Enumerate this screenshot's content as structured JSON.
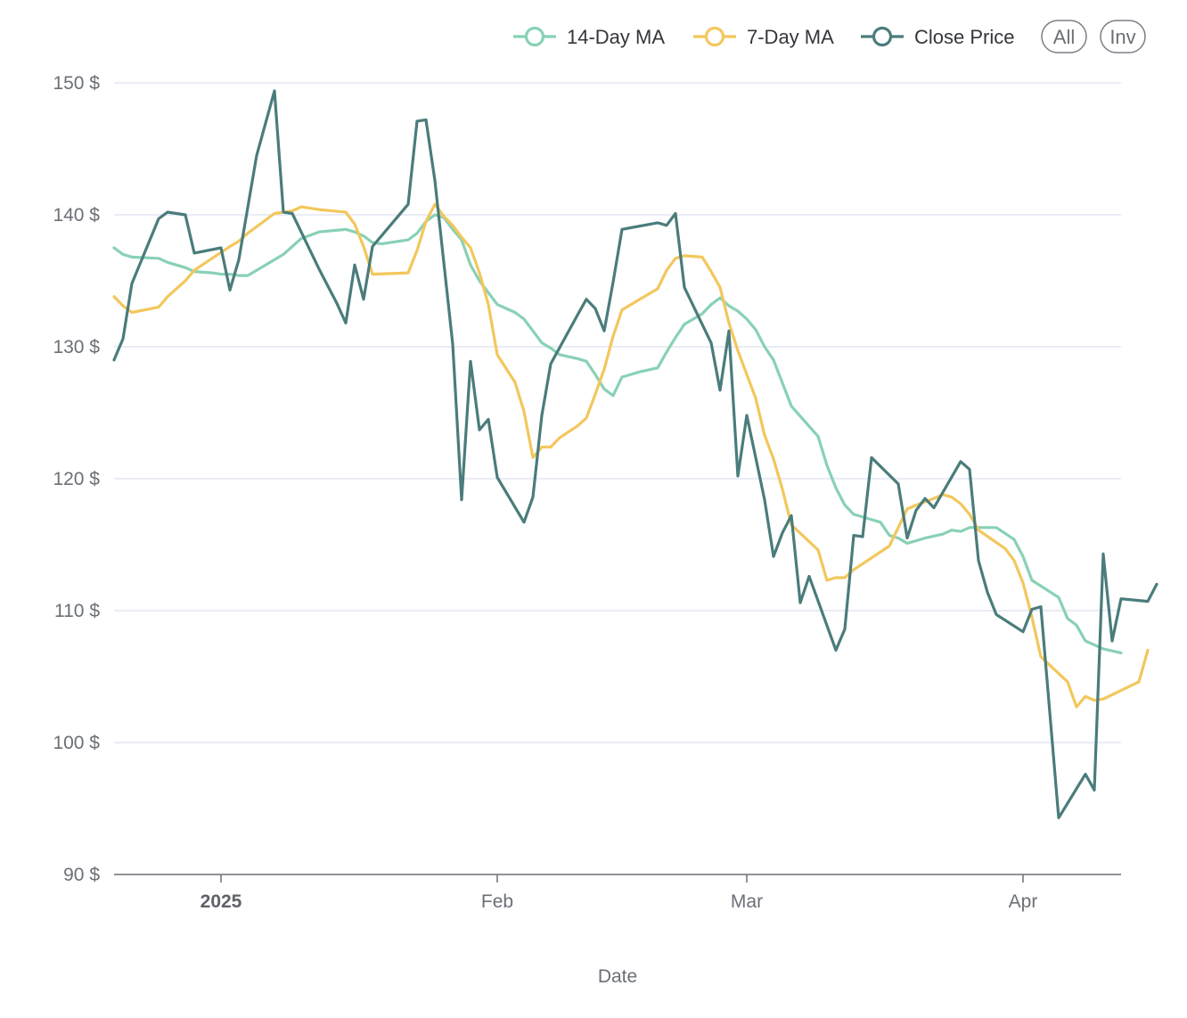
{
  "chart_data": {
    "type": "line",
    "xlabel": "Date",
    "y_tick_suffix": " $",
    "ylim": [
      90,
      150
    ],
    "y_ticks": [
      90,
      100,
      110,
      120,
      130,
      140,
      150
    ],
    "xlim": [
      "2024-12-20",
      "2025-04-12"
    ],
    "x_ticks": [
      {
        "date": "2025-01-01",
        "label": "2025",
        "bold": true
      },
      {
        "date": "2025-02-01",
        "label": "Feb",
        "bold": false
      },
      {
        "date": "2025-03-01",
        "label": "Mar",
        "bold": false
      },
      {
        "date": "2025-04-01",
        "label": "Apr",
        "bold": false
      }
    ],
    "grid": true,
    "legend_position": "top-right",
    "legend_buttons": [
      "All",
      "Inv"
    ],
    "series": [
      {
        "name": "14-Day MA",
        "color": "#88d1b5",
        "points": [
          [
            "2024-12-20",
            137.5
          ],
          [
            "2024-12-21",
            137.0
          ],
          [
            "2024-12-22",
            136.8
          ],
          [
            "2024-12-25",
            136.7
          ],
          [
            "2024-12-26",
            136.4
          ],
          [
            "2024-12-28",
            136.0
          ],
          [
            "2024-12-29",
            135.7
          ],
          [
            "2024-12-31",
            135.6
          ],
          [
            "2025-01-01",
            135.5
          ],
          [
            "2025-01-02",
            135.5
          ],
          [
            "2025-01-03",
            135.4
          ],
          [
            "2025-01-04",
            135.4
          ],
          [
            "2025-01-05",
            135.8
          ],
          [
            "2025-01-08",
            137.0
          ],
          [
            "2025-01-10",
            138.2
          ],
          [
            "2025-01-12",
            138.7
          ],
          [
            "2025-01-15",
            138.9
          ],
          [
            "2025-01-16",
            138.7
          ],
          [
            "2025-01-17",
            138.4
          ],
          [
            "2025-01-18",
            137.9
          ],
          [
            "2025-01-19",
            137.8
          ],
          [
            "2025-01-20",
            137.9
          ],
          [
            "2025-01-22",
            138.1
          ],
          [
            "2025-01-23",
            138.6
          ],
          [
            "2025-01-24",
            139.5
          ],
          [
            "2025-01-25",
            140.0
          ],
          [
            "2025-01-26",
            139.8
          ],
          [
            "2025-01-27",
            138.9
          ],
          [
            "2025-01-28",
            138.1
          ],
          [
            "2025-01-29",
            136.2
          ],
          [
            "2025-01-30",
            135.0
          ],
          [
            "2025-02-01",
            133.2
          ],
          [
            "2025-02-03",
            132.6
          ],
          [
            "2025-02-04",
            132.1
          ],
          [
            "2025-02-05",
            131.2
          ],
          [
            "2025-02-06",
            130.3
          ],
          [
            "2025-02-07",
            129.9
          ],
          [
            "2025-02-08",
            129.4
          ],
          [
            "2025-02-10",
            129.1
          ],
          [
            "2025-02-11",
            128.9
          ],
          [
            "2025-02-12",
            127.9
          ],
          [
            "2025-02-13",
            126.8
          ],
          [
            "2025-02-14",
            126.3
          ],
          [
            "2025-02-15",
            127.7
          ],
          [
            "2025-02-17",
            128.1
          ],
          [
            "2025-02-19",
            128.4
          ],
          [
            "2025-02-20",
            129.6
          ],
          [
            "2025-02-21",
            130.7
          ],
          [
            "2025-02-22",
            131.7
          ],
          [
            "2025-02-24",
            132.5
          ],
          [
            "2025-02-25",
            133.2
          ],
          [
            "2025-02-26",
            133.7
          ],
          [
            "2025-02-27",
            133.1
          ],
          [
            "2025-02-28",
            132.7
          ],
          [
            "2025-03-01",
            132.1
          ],
          [
            "2025-03-02",
            131.3
          ],
          [
            "2025-03-03",
            130.0
          ],
          [
            "2025-03-04",
            129.0
          ],
          [
            "2025-03-06",
            125.5
          ],
          [
            "2025-03-09",
            123.2
          ],
          [
            "2025-03-10",
            121.0
          ],
          [
            "2025-03-11",
            119.3
          ],
          [
            "2025-03-12",
            118.0
          ],
          [
            "2025-03-13",
            117.3
          ],
          [
            "2025-03-14",
            117.1
          ],
          [
            "2025-03-15",
            116.9
          ],
          [
            "2025-03-16",
            116.7
          ],
          [
            "2025-03-17",
            115.7
          ],
          [
            "2025-03-18",
            115.5
          ],
          [
            "2025-03-19",
            115.1
          ],
          [
            "2025-03-20",
            115.3
          ],
          [
            "2025-03-21",
            115.5
          ],
          [
            "2025-03-23",
            115.8
          ],
          [
            "2025-03-24",
            116.1
          ],
          [
            "2025-03-25",
            116.0
          ],
          [
            "2025-03-26",
            116.3
          ],
          [
            "2025-03-29",
            116.3
          ],
          [
            "2025-03-31",
            115.4
          ],
          [
            "2025-04-01",
            114.1
          ],
          [
            "2025-04-02",
            112.3
          ],
          [
            "2025-04-05",
            111.0
          ],
          [
            "2025-04-06",
            109.4
          ],
          [
            "2025-04-07",
            108.9
          ],
          [
            "2025-04-08",
            107.7
          ],
          [
            "2025-04-10",
            107.1
          ],
          [
            "2025-04-12",
            106.8
          ]
        ]
      },
      {
        "name": "7-Day MA",
        "color": "#f2c75c",
        "points": [
          [
            "2024-12-20",
            133.8
          ],
          [
            "2024-12-21",
            133.1
          ],
          [
            "2024-12-22",
            132.6
          ],
          [
            "2024-12-25",
            133.0
          ],
          [
            "2024-12-26",
            133.8
          ],
          [
            "2024-12-28",
            135.0
          ],
          [
            "2024-12-29",
            135.8
          ],
          [
            "2025-01-02",
            137.6
          ],
          [
            "2025-01-03",
            138.0
          ],
          [
            "2025-01-04",
            138.6
          ],
          [
            "2025-01-07",
            140.1
          ],
          [
            "2025-01-08",
            140.2
          ],
          [
            "2025-01-09",
            140.3
          ],
          [
            "2025-01-10",
            140.6
          ],
          [
            "2025-01-12",
            140.4
          ],
          [
            "2025-01-15",
            140.2
          ],
          [
            "2025-01-16",
            139.3
          ],
          [
            "2025-01-17",
            137.6
          ],
          [
            "2025-01-18",
            135.5
          ],
          [
            "2025-01-22",
            135.6
          ],
          [
            "2025-01-23",
            137.3
          ],
          [
            "2025-01-24",
            139.5
          ],
          [
            "2025-01-25",
            140.8
          ],
          [
            "2025-01-26",
            139.9
          ],
          [
            "2025-01-27",
            139.2
          ],
          [
            "2025-01-28",
            138.3
          ],
          [
            "2025-01-29",
            137.5
          ],
          [
            "2025-01-30",
            135.6
          ],
          [
            "2025-01-31",
            133.2
          ],
          [
            "2025-02-01",
            129.4
          ],
          [
            "2025-02-03",
            127.3
          ],
          [
            "2025-02-04",
            125.1
          ],
          [
            "2025-02-05",
            121.6
          ],
          [
            "2025-02-06",
            122.4
          ],
          [
            "2025-02-07",
            122.4
          ],
          [
            "2025-02-08",
            123.1
          ],
          [
            "2025-02-10",
            124.0
          ],
          [
            "2025-02-11",
            124.6
          ],
          [
            "2025-02-12",
            126.4
          ],
          [
            "2025-02-13",
            128.3
          ],
          [
            "2025-02-14",
            130.8
          ],
          [
            "2025-02-15",
            132.8
          ],
          [
            "2025-02-17",
            133.6
          ],
          [
            "2025-02-19",
            134.4
          ],
          [
            "2025-02-20",
            135.8
          ],
          [
            "2025-02-21",
            136.7
          ],
          [
            "2025-02-22",
            136.9
          ],
          [
            "2025-02-24",
            136.8
          ],
          [
            "2025-02-25",
            135.7
          ],
          [
            "2025-02-26",
            134.5
          ],
          [
            "2025-02-27",
            131.8
          ],
          [
            "2025-02-28",
            129.7
          ],
          [
            "2025-03-02",
            126.1
          ],
          [
            "2025-03-03",
            123.3
          ],
          [
            "2025-03-04",
            121.5
          ],
          [
            "2025-03-05",
            119.2
          ],
          [
            "2025-03-06",
            116.5
          ],
          [
            "2025-03-09",
            114.6
          ],
          [
            "2025-03-10",
            112.3
          ],
          [
            "2025-03-11",
            112.5
          ],
          [
            "2025-03-12",
            112.5
          ],
          [
            "2025-03-13",
            113.1
          ],
          [
            "2025-03-17",
            114.9
          ],
          [
            "2025-03-18",
            116.3
          ],
          [
            "2025-03-19",
            117.7
          ],
          [
            "2025-03-20",
            118.0
          ],
          [
            "2025-03-22",
            118.5
          ],
          [
            "2025-03-23",
            118.8
          ],
          [
            "2025-03-24",
            118.6
          ],
          [
            "2025-03-25",
            118.1
          ],
          [
            "2025-03-26",
            117.3
          ],
          [
            "2025-03-27",
            116.1
          ],
          [
            "2025-03-30",
            114.7
          ],
          [
            "2025-03-31",
            113.8
          ],
          [
            "2025-04-01",
            112.1
          ],
          [
            "2025-04-02",
            109.5
          ],
          [
            "2025-04-03",
            106.5
          ],
          [
            "2025-04-06",
            104.6
          ],
          [
            "2025-04-07",
            102.7
          ],
          [
            "2025-04-08",
            103.5
          ],
          [
            "2025-04-09",
            103.2
          ],
          [
            "2025-04-10",
            103.3
          ],
          [
            "2025-04-14",
            104.6
          ],
          [
            "2025-04-15",
            107.0
          ]
        ]
      },
      {
        "name": "Close Price",
        "color": "#4a7c7b",
        "points": [
          [
            "2024-12-20",
            129.0
          ],
          [
            "2024-12-21",
            130.6
          ],
          [
            "2024-12-22",
            134.8
          ],
          [
            "2024-12-25",
            139.7
          ],
          [
            "2024-12-26",
            140.2
          ],
          [
            "2024-12-28",
            140.0
          ],
          [
            "2024-12-29",
            137.1
          ],
          [
            "2025-01-01",
            137.5
          ],
          [
            "2025-01-02",
            134.3
          ],
          [
            "2025-01-03",
            136.6
          ],
          [
            "2025-01-05",
            144.5
          ],
          [
            "2025-01-07",
            149.4
          ],
          [
            "2025-01-08",
            140.2
          ],
          [
            "2025-01-09",
            140.1
          ],
          [
            "2025-01-12",
            135.9
          ],
          [
            "2025-01-14",
            133.3
          ],
          [
            "2025-01-15",
            131.8
          ],
          [
            "2025-01-16",
            136.2
          ],
          [
            "2025-01-17",
            133.6
          ],
          [
            "2025-01-18",
            137.6
          ],
          [
            "2025-01-22",
            140.8
          ],
          [
            "2025-01-23",
            147.1
          ],
          [
            "2025-01-24",
            147.2
          ],
          [
            "2025-01-25",
            142.6
          ],
          [
            "2025-01-27",
            130.2
          ],
          [
            "2025-01-28",
            118.4
          ],
          [
            "2025-01-29",
            128.9
          ],
          [
            "2025-01-30",
            123.7
          ],
          [
            "2025-01-31",
            124.5
          ],
          [
            "2025-02-01",
            120.1
          ],
          [
            "2025-02-04",
            116.7
          ],
          [
            "2025-02-05",
            118.6
          ],
          [
            "2025-02-06",
            124.8
          ],
          [
            "2025-02-07",
            128.7
          ],
          [
            "2025-02-10",
            132.4
          ],
          [
            "2025-02-11",
            133.6
          ],
          [
            "2025-02-12",
            132.9
          ],
          [
            "2025-02-13",
            131.2
          ],
          [
            "2025-02-14",
            134.9
          ],
          [
            "2025-02-15",
            138.9
          ],
          [
            "2025-02-19",
            139.4
          ],
          [
            "2025-02-20",
            139.2
          ],
          [
            "2025-02-21",
            140.1
          ],
          [
            "2025-02-22",
            134.5
          ],
          [
            "2025-02-25",
            130.3
          ],
          [
            "2025-02-26",
            126.7
          ],
          [
            "2025-02-27",
            131.2
          ],
          [
            "2025-02-28",
            120.2
          ],
          [
            "2025-03-01",
            124.8
          ],
          [
            "2025-03-02",
            121.6
          ],
          [
            "2025-03-03",
            118.4
          ],
          [
            "2025-03-04",
            114.1
          ],
          [
            "2025-03-05",
            115.9
          ],
          [
            "2025-03-06",
            117.2
          ],
          [
            "2025-03-07",
            110.6
          ],
          [
            "2025-03-08",
            112.6
          ],
          [
            "2025-03-11",
            107.0
          ],
          [
            "2025-03-12",
            108.6
          ],
          [
            "2025-03-13",
            115.7
          ],
          [
            "2025-03-14",
            115.6
          ],
          [
            "2025-03-15",
            121.6
          ],
          [
            "2025-03-18",
            119.6
          ],
          [
            "2025-03-19",
            115.5
          ],
          [
            "2025-03-20",
            117.6
          ],
          [
            "2025-03-21",
            118.5
          ],
          [
            "2025-03-22",
            117.8
          ],
          [
            "2025-03-25",
            121.3
          ],
          [
            "2025-03-26",
            120.7
          ],
          [
            "2025-03-27",
            113.8
          ],
          [
            "2025-03-28",
            111.4
          ],
          [
            "2025-03-29",
            109.7
          ],
          [
            "2025-04-01",
            108.4
          ],
          [
            "2025-04-02",
            110.1
          ],
          [
            "2025-04-03",
            110.3
          ],
          [
            "2025-04-05",
            94.3
          ],
          [
            "2025-04-08",
            97.6
          ],
          [
            "2025-04-09",
            96.4
          ],
          [
            "2025-04-10",
            114.3
          ],
          [
            "2025-04-11",
            107.7
          ],
          [
            "2025-04-12",
            110.9
          ],
          [
            "2025-04-15",
            110.7
          ],
          [
            "2025-04-16",
            112.0
          ]
        ]
      }
    ]
  }
}
